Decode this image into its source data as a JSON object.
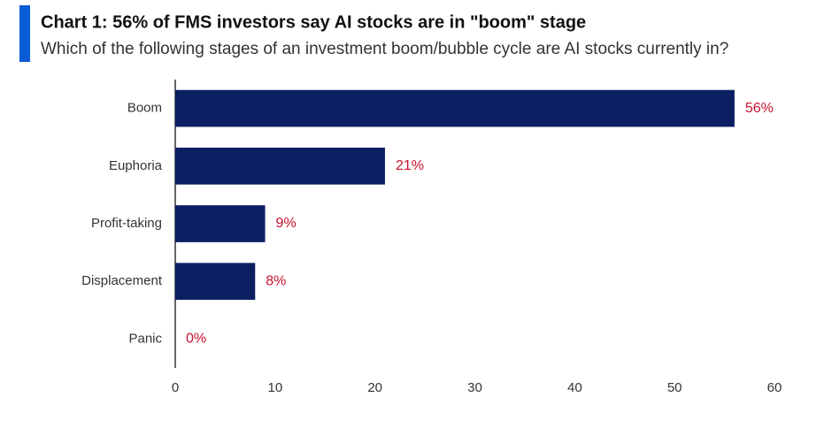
{
  "chart_data": {
    "type": "bar",
    "orientation": "horizontal",
    "title": "Chart 1: 56% of FMS investors say AI stocks are in \"boom\" stage",
    "subtitle": "Which of the following stages of an investment boom/bubble cycle are AI stocks currently in?",
    "categories": [
      "Boom",
      "Euphoria",
      "Profit-taking",
      "Displacement",
      "Panic"
    ],
    "values": [
      56,
      21,
      9,
      8,
      0
    ],
    "value_labels": [
      "56%",
      "21%",
      "9%",
      "8%",
      "0%"
    ],
    "color": "#0c1f63",
    "label_color": "#c8102e",
    "xlim": [
      0,
      60
    ],
    "xticks": [
      0,
      10,
      20,
      30,
      40,
      50,
      60
    ],
    "grid": false
  }
}
